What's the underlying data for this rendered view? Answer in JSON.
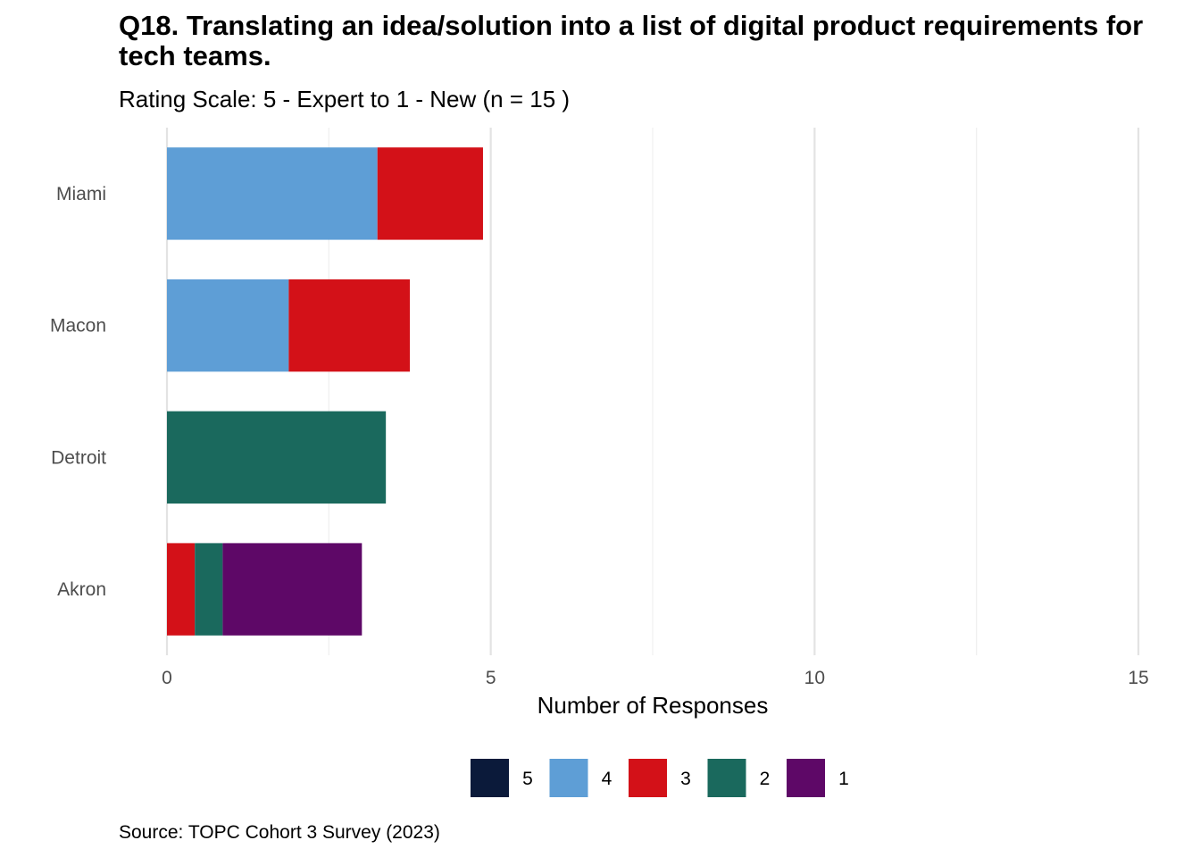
{
  "chart_data": {
    "type": "bar",
    "orientation": "horizontal",
    "stacked": true,
    "title": "Q18. Translating an idea/solution into a list of digital product requirements for tech teams.",
    "subtitle": "Rating Scale: 5 - Expert to 1 - New (n = 15 )",
    "xlabel": "Number of Responses",
    "ylabel": "",
    "xlim": [
      0,
      15
    ],
    "x_ticks": [
      0,
      5,
      10,
      15
    ],
    "grid": true,
    "legend_position": "bottom",
    "categories": [
      "Miami",
      "Macon",
      "Detroit",
      "Akron"
    ],
    "series": [
      {
        "name": "5",
        "color": "#0b1a3a",
        "values": [
          0,
          0,
          0,
          0
        ]
      },
      {
        "name": "4",
        "color": "#5e9ed6",
        "values": [
          3.25,
          1.88,
          0,
          0
        ]
      },
      {
        "name": "3",
        "color": "#d31118",
        "values": [
          1.63,
          1.87,
          0,
          0.43
        ]
      },
      {
        "name": "2",
        "color": "#1a695d",
        "values": [
          0,
          0,
          3.38,
          0.43
        ]
      },
      {
        "name": "1",
        "color": "#5e0867",
        "values": [
          0,
          0,
          0,
          2.15
        ]
      }
    ]
  },
  "source": "Source: TOPC Cohort 3 Survey (2023)"
}
